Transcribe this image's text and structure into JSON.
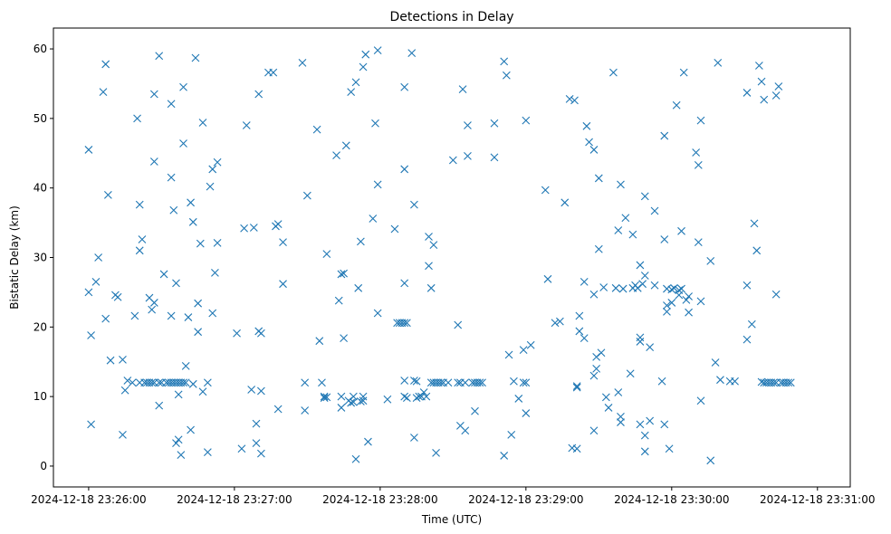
{
  "chart_data": {
    "type": "scatter",
    "title": "Detections in Delay",
    "xlabel": "Time (UTC)",
    "ylabel": "Bistatic Delay (km)",
    "x_unit": "seconds after 2024-12-18 23:26:00",
    "xlim": [
      -14.5,
      313.5
    ],
    "ylim": [
      -3,
      63
    ],
    "x_ticks": [
      {
        "value": 0,
        "label": "2024-12-18 23:26:00"
      },
      {
        "value": 60,
        "label": "2024-12-18 23:27:00"
      },
      {
        "value": 120,
        "label": "2024-12-18 23:28:00"
      },
      {
        "value": 180,
        "label": "2024-12-18 23:29:00"
      },
      {
        "value": 240,
        "label": "2024-12-18 23:30:00"
      },
      {
        "value": 300,
        "label": "2024-12-18 23:31:00"
      }
    ],
    "y_ticks": [
      0,
      10,
      20,
      30,
      40,
      50,
      60
    ],
    "marker": "x",
    "color": "#1f77b4",
    "series": [
      {
        "name": "detections",
        "points": [
          [
            0,
            45.5
          ],
          [
            0,
            25
          ],
          [
            1,
            6
          ],
          [
            1,
            18.8
          ],
          [
            3,
            26.5
          ],
          [
            4,
            30
          ],
          [
            6,
            53.8
          ],
          [
            7,
            21.2
          ],
          [
            7,
            57.8
          ],
          [
            8,
            39
          ],
          [
            9,
            15.2
          ],
          [
            11,
            24.6
          ],
          [
            12,
            24.3
          ],
          [
            14,
            4.5
          ],
          [
            14,
            15.3
          ],
          [
            15,
            10.9
          ],
          [
            16,
            12.3
          ],
          [
            18,
            12
          ],
          [
            19,
            21.6
          ],
          [
            20,
            50
          ],
          [
            21,
            37.6
          ],
          [
            21,
            31
          ],
          [
            22,
            32.6
          ],
          [
            21,
            12
          ],
          [
            23,
            12
          ],
          [
            24,
            12
          ],
          [
            25,
            12
          ],
          [
            26,
            12
          ],
          [
            27,
            12
          ],
          [
            25,
            24.2
          ],
          [
            26,
            22.5
          ],
          [
            27,
            53.5
          ],
          [
            27,
            43.8
          ],
          [
            27,
            23.5
          ],
          [
            29,
            12
          ],
          [
            29,
            8.7
          ],
          [
            29,
            59
          ],
          [
            30,
            12
          ],
          [
            31,
            27.6
          ],
          [
            32,
            12
          ],
          [
            33,
            12
          ],
          [
            34,
            12
          ],
          [
            34,
            21.6
          ],
          [
            34,
            41.5
          ],
          [
            34,
            52.1
          ],
          [
            35,
            12
          ],
          [
            35,
            36.8
          ],
          [
            36,
            12
          ],
          [
            36,
            26.3
          ],
          [
            36,
            3.3
          ],
          [
            37,
            3.8
          ],
          [
            37,
            10.3
          ],
          [
            37,
            12
          ],
          [
            38,
            12
          ],
          [
            38,
            1.6
          ],
          [
            39,
            12
          ],
          [
            39,
            54.5
          ],
          [
            39,
            46.4
          ],
          [
            40,
            12
          ],
          [
            40,
            14.4
          ],
          [
            41,
            21.4
          ],
          [
            42,
            37.9
          ],
          [
            42,
            5.2
          ],
          [
            43,
            35.1
          ],
          [
            43,
            11.8
          ],
          [
            44,
            58.7
          ],
          [
            45,
            19.3
          ],
          [
            45,
            23.4
          ],
          [
            46,
            32
          ],
          [
            47,
            49.4
          ],
          [
            47,
            10.7
          ],
          [
            49,
            12
          ],
          [
            49,
            2
          ],
          [
            50,
            40.2
          ],
          [
            51,
            42.7
          ],
          [
            51,
            22
          ],
          [
            52,
            27.8
          ],
          [
            53,
            43.7
          ],
          [
            53,
            32.1
          ],
          [
            61,
            19.1
          ],
          [
            63,
            2.5
          ],
          [
            64,
            34.2
          ],
          [
            65,
            49
          ],
          [
            67,
            11
          ],
          [
            68,
            34.3
          ],
          [
            69,
            6.1
          ],
          [
            69,
            3.3
          ],
          [
            70,
            53.5
          ],
          [
            70,
            19.4
          ],
          [
            71,
            19.1
          ],
          [
            71,
            10.8
          ],
          [
            71,
            1.8
          ],
          [
            74,
            56.6
          ],
          [
            76,
            56.6
          ],
          [
            77,
            34.5
          ],
          [
            78,
            8.2
          ],
          [
            78,
            34.8
          ],
          [
            80,
            26.2
          ],
          [
            80,
            32.2
          ],
          [
            88,
            58
          ],
          [
            89,
            8
          ],
          [
            89,
            12
          ],
          [
            90,
            38.9
          ],
          [
            94,
            48.4
          ],
          [
            95,
            18
          ],
          [
            96,
            12
          ],
          [
            97,
            9.8
          ],
          [
            97,
            10
          ],
          [
            98,
            30.5
          ],
          [
            98,
            9.9
          ],
          [
            102,
            44.7
          ],
          [
            103,
            23.8
          ],
          [
            104,
            27.6
          ],
          [
            104,
            8.4
          ],
          [
            104,
            10
          ],
          [
            105,
            27.7
          ],
          [
            105,
            18.4
          ],
          [
            106,
            46.1
          ],
          [
            107,
            9.4
          ],
          [
            108,
            53.8
          ],
          [
            108,
            9.1
          ],
          [
            109,
            9.2
          ],
          [
            109,
            10
          ],
          [
            110,
            1
          ],
          [
            110,
            55.2
          ],
          [
            111,
            25.6
          ],
          [
            112,
            32.3
          ],
          [
            112,
            9.3
          ],
          [
            113,
            9.4
          ],
          [
            113,
            57.4
          ],
          [
            113,
            10
          ],
          [
            114,
            59.2
          ],
          [
            115,
            3.5
          ],
          [
            117,
            35.6
          ],
          [
            118,
            49.3
          ],
          [
            119,
            59.8
          ],
          [
            119,
            40.5
          ],
          [
            119,
            22
          ],
          [
            123,
            9.6
          ],
          [
            126,
            34.1
          ],
          [
            127,
            20.6
          ],
          [
            128,
            20.6
          ],
          [
            129,
            20.6
          ],
          [
            130,
            20.6
          ],
          [
            130,
            42.7
          ],
          [
            130,
            54.5
          ],
          [
            130,
            26.3
          ],
          [
            130,
            12.3
          ],
          [
            130,
            10
          ],
          [
            131,
            20.6
          ],
          [
            131,
            9.8
          ],
          [
            133,
            59.4
          ],
          [
            134,
            37.6
          ],
          [
            134,
            4.1
          ],
          [
            134,
            12.3
          ],
          [
            135,
            12.2
          ],
          [
            135,
            9.8
          ],
          [
            136,
            10
          ],
          [
            137,
            10
          ],
          [
            138,
            10.6
          ],
          [
            139,
            10
          ],
          [
            140,
            33
          ],
          [
            140,
            28.8
          ],
          [
            141,
            12
          ],
          [
            141,
            25.6
          ],
          [
            142,
            31.8
          ],
          [
            142,
            12
          ],
          [
            143,
            1.9
          ],
          [
            143,
            12
          ],
          [
            144,
            12
          ],
          [
            145,
            12
          ],
          [
            146,
            12
          ],
          [
            148,
            12
          ],
          [
            150,
            44
          ],
          [
            152,
            12
          ],
          [
            152,
            20.3
          ],
          [
            153,
            12
          ],
          [
            153,
            5.8
          ],
          [
            154,
            54.2
          ],
          [
            155,
            12
          ],
          [
            155,
            5.1
          ],
          [
            156,
            44.6
          ],
          [
            156,
            49
          ],
          [
            158,
            12
          ],
          [
            159,
            7.9
          ],
          [
            159,
            12
          ],
          [
            160,
            12
          ],
          [
            161,
            12
          ],
          [
            162,
            12
          ],
          [
            167,
            49.3
          ],
          [
            167,
            44.4
          ],
          [
            171,
            58.2
          ],
          [
            171,
            1.5
          ],
          [
            172,
            56.2
          ],
          [
            173,
            16
          ],
          [
            174,
            4.5
          ],
          [
            175,
            12.2
          ],
          [
            177,
            9.7
          ],
          [
            179,
            16.7
          ],
          [
            179,
            12
          ],
          [
            180,
            12
          ],
          [
            180,
            49.7
          ],
          [
            180,
            7.6
          ],
          [
            182,
            17.4
          ],
          [
            188,
            39.7
          ],
          [
            189,
            26.9
          ],
          [
            192,
            20.6
          ],
          [
            194,
            20.8
          ],
          [
            196,
            37.9
          ],
          [
            198,
            52.8
          ],
          [
            199,
            2.6
          ],
          [
            200,
            52.6
          ],
          [
            201,
            11.5
          ],
          [
            201,
            2.5
          ],
          [
            201,
            11.3
          ],
          [
            202,
            21.6
          ],
          [
            202,
            19.4
          ],
          [
            204,
            26.5
          ],
          [
            204,
            18.4
          ],
          [
            205,
            48.9
          ],
          [
            206,
            46.6
          ],
          [
            208,
            45.5
          ],
          [
            208,
            24.7
          ],
          [
            208,
            13
          ],
          [
            208,
            5.1
          ],
          [
            209,
            15.7
          ],
          [
            209,
            14
          ],
          [
            210,
            41.4
          ],
          [
            210,
            31.2
          ],
          [
            211,
            16.3
          ],
          [
            212,
            25.7
          ],
          [
            213,
            9.9
          ],
          [
            214,
            8.4
          ],
          [
            216,
            56.6
          ],
          [
            217,
            25.6
          ],
          [
            218,
            10.6
          ],
          [
            218,
            33.9
          ],
          [
            219,
            40.5
          ],
          [
            219,
            7.1
          ],
          [
            219,
            6.3
          ],
          [
            220,
            25.5
          ],
          [
            221,
            35.7
          ],
          [
            223,
            13.3
          ],
          [
            224,
            33.3
          ],
          [
            224,
            25.6
          ],
          [
            225,
            26
          ],
          [
            226,
            25.6
          ],
          [
            227,
            6
          ],
          [
            227,
            18.5
          ],
          [
            227,
            17.9
          ],
          [
            227,
            28.9
          ],
          [
            228,
            26.2
          ],
          [
            229,
            27.4
          ],
          [
            229,
            38.8
          ],
          [
            229,
            4.4
          ],
          [
            229,
            2.1
          ],
          [
            231,
            17.1
          ],
          [
            231,
            6.5
          ],
          [
            233,
            36.7
          ],
          [
            233,
            26
          ],
          [
            236,
            12.2
          ],
          [
            237,
            6
          ],
          [
            237,
            47.5
          ],
          [
            237,
            32.6
          ],
          [
            238,
            25.5
          ],
          [
            238,
            22.2
          ],
          [
            238,
            23.1
          ],
          [
            239,
            2.5
          ],
          [
            240,
            23.5
          ],
          [
            240,
            25.4
          ],
          [
            241,
            25.6
          ],
          [
            242,
            51.9
          ],
          [
            243,
            25.3
          ],
          [
            243,
            24.6
          ],
          [
            244,
            25.5
          ],
          [
            244,
            33.8
          ],
          [
            245,
            56.6
          ],
          [
            246,
            23.9
          ],
          [
            247,
            24.4
          ],
          [
            247,
            22.1
          ],
          [
            250,
            45.1
          ],
          [
            251,
            43.3
          ],
          [
            251,
            32.2
          ],
          [
            252,
            49.7
          ],
          [
            252,
            9.4
          ],
          [
            252,
            23.7
          ],
          [
            256,
            29.5
          ],
          [
            256,
            0.8
          ],
          [
            258,
            14.9
          ],
          [
            259,
            58
          ],
          [
            260,
            12.4
          ],
          [
            264,
            12.2
          ],
          [
            266,
            12.2
          ],
          [
            271,
            53.7
          ],
          [
            271,
            26
          ],
          [
            271,
            18.2
          ],
          [
            273,
            20.4
          ],
          [
            274,
            34.9
          ],
          [
            275,
            31
          ],
          [
            276,
            57.6
          ],
          [
            277,
            55.3
          ],
          [
            277,
            12.1
          ],
          [
            278,
            52.7
          ],
          [
            278,
            12
          ],
          [
            279,
            12
          ],
          [
            280,
            12
          ],
          [
            281,
            12
          ],
          [
            282,
            12
          ],
          [
            283,
            53.3
          ],
          [
            283,
            24.7
          ],
          [
            283,
            12
          ],
          [
            284,
            54.6
          ],
          [
            285,
            12
          ],
          [
            286,
            12
          ],
          [
            287,
            12
          ],
          [
            288,
            12
          ],
          [
            289,
            12
          ]
        ]
      }
    ]
  }
}
